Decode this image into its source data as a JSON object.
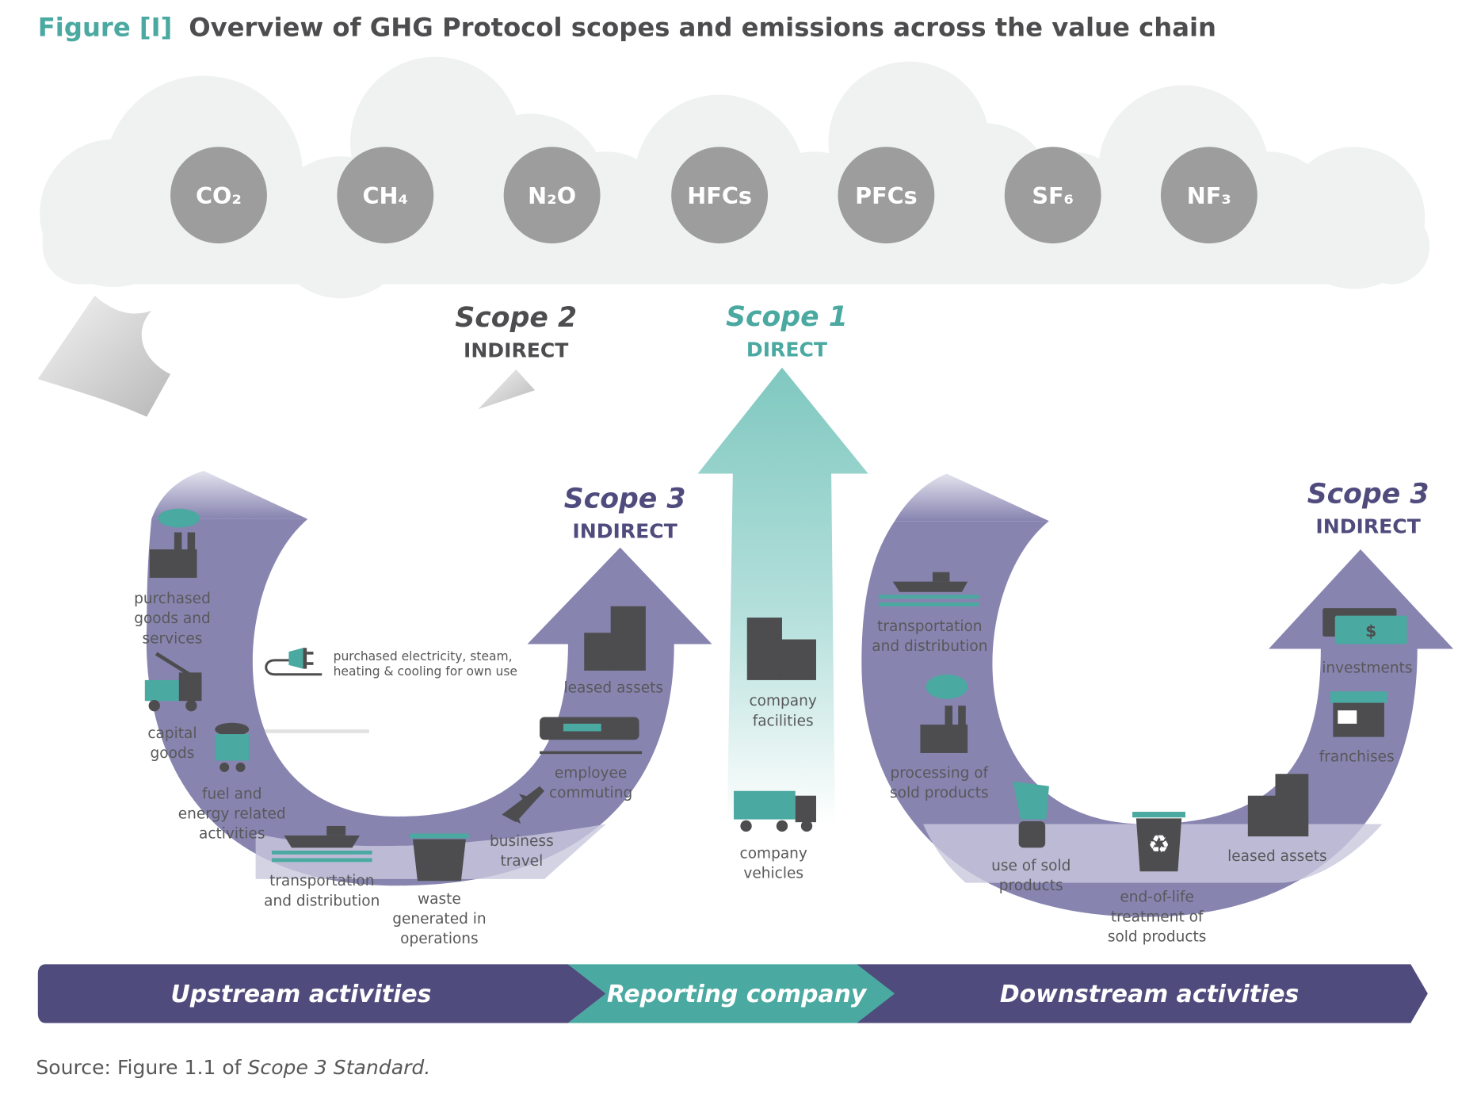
{
  "title": {
    "prefix": "Figure [I]",
    "text": "Overview of GHG Protocol scopes and emissions across the value chain"
  },
  "gases": [
    "CO₂",
    "CH₄",
    "N₂O",
    "HFCs",
    "PFCs",
    "SF₆",
    "NF₃"
  ],
  "scope2": {
    "title": "Scope 2",
    "sub": "INDIRECT",
    "label": [
      "purchased electricity, steam,",
      "heating & cooling for own use"
    ]
  },
  "scope1": {
    "title": "Scope 1",
    "sub": "DIRECT"
  },
  "scope3_left": {
    "title": "Scope 3",
    "sub": "INDIRECT"
  },
  "scope3_right": {
    "title": "Scope 3",
    "sub": "INDIRECT"
  },
  "upstream_labels": [
    [
      "purchased",
      "goods and",
      "services"
    ],
    [
      "capital",
      "goods"
    ],
    [
      "fuel and",
      "energy related",
      "activities"
    ],
    [
      "transportation",
      "and distribution"
    ],
    [
      "waste",
      "generated in",
      "operations"
    ],
    [
      "business",
      "travel"
    ],
    [
      "employee",
      "commuting"
    ],
    [
      "leased assets"
    ]
  ],
  "company_labels": [
    [
      "company",
      "facilities"
    ],
    [
      "company",
      "vehicles"
    ]
  ],
  "downstream_labels": [
    [
      "transportation",
      "and distribution"
    ],
    [
      "processing of",
      "sold products"
    ],
    [
      "use of sold",
      "products"
    ],
    [
      "end-of-life",
      "treatment of",
      "sold products"
    ],
    [
      "leased assets"
    ],
    [
      "franchises"
    ],
    [
      "investments"
    ]
  ],
  "bar": {
    "upstream": "Upstream activities",
    "reporting": "Reporting company",
    "downstream": "Downstream activities"
  },
  "source": {
    "prefix": "Source: Figure 1.1 of ",
    "italic": "Scope 3 Standard."
  },
  "colors": {
    "teal": "#4aa9a0",
    "purple": "#8784b0",
    "dark_purple": "#4f4b7d",
    "gas_grey": "#9d9d9d",
    "cloud": "#f0f1f1",
    "text": "#58585a"
  }
}
